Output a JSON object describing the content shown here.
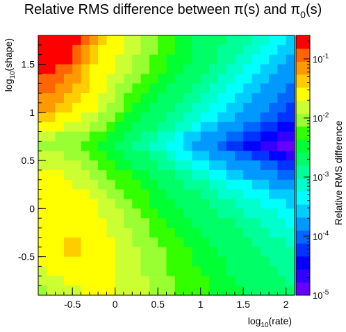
{
  "chart_data": {
    "type": "heatmap",
    "title": "Relative RMS difference between π(s) and π",
    "title_sub": "0",
    "title_tail": "(s)",
    "xlabel_main": "log",
    "xlabel_sub": "10",
    "xlabel_tail": "(rate)",
    "ylabel_main": "log",
    "ylabel_sub": "10",
    "ylabel_tail": "(shape)",
    "zlabel": "Relative RMS difference",
    "xlim": [
      -0.9,
      2.1
    ],
    "ylim": [
      -0.9,
      1.8
    ],
    "zlim": [
      1e-05,
      0.25
    ],
    "zscale": "log",
    "xticks": [
      -0.5,
      0,
      0.5,
      1,
      1.5,
      2
    ],
    "xtick_labels": [
      "-0.5",
      "0",
      "0.5",
      "1",
      "1.5",
      "2"
    ],
    "yticks": [
      -0.5,
      0,
      0.5,
      1,
      1.5
    ],
    "ytick_labels": [
      "-0.5",
      "0",
      "0.5",
      "1",
      "1.5"
    ],
    "zticks": [
      1e-05,
      0.0001,
      0.001,
      0.01,
      0.1
    ],
    "ztick_base": "10",
    "ztick_exponents": [
      "-5",
      "-4",
      "-3",
      "-2",
      "-1"
    ],
    "grid": false,
    "colorbar": "right",
    "nx": 30,
    "ny": 27,
    "values_log10": [
      [
        -0.8,
        -0.8,
        -0.8,
        -0.8,
        -0.8,
        -0.9,
        -1.2,
        -1.4,
        -1.6,
        -1.7,
        -1.8,
        -1.9,
        -2.0,
        -2.1,
        -2.2,
        -2.3,
        -2.4,
        -2.5,
        -2.6,
        -2.6,
        -2.7,
        -2.8,
        -2.9,
        -3.0,
        -3.0,
        -3.1,
        -3.2,
        -3.3,
        -3.4,
        -3.5
      ],
      [
        -0.8,
        -0.8,
        -0.8,
        -0.8,
        -0.9,
        -1.1,
        -1.3,
        -1.5,
        -1.6,
        -1.7,
        -1.8,
        -1.9,
        -2.0,
        -2.1,
        -2.2,
        -2.3,
        -2.4,
        -2.5,
        -2.6,
        -2.7,
        -2.8,
        -2.9,
        -3.0,
        -3.0,
        -3.1,
        -3.2,
        -3.3,
        -3.4,
        -3.5,
        -3.6
      ],
      [
        -0.8,
        -0.8,
        -0.8,
        -0.8,
        -1.0,
        -1.2,
        -1.4,
        -1.6,
        -1.7,
        -1.8,
        -1.9,
        -2.0,
        -2.1,
        -2.2,
        -2.3,
        -2.4,
        -2.4,
        -2.5,
        -2.6,
        -2.7,
        -2.8,
        -2.9,
        -3.0,
        -3.1,
        -3.2,
        -3.3,
        -3.4,
        -3.5,
        -3.6,
        -3.7
      ],
      [
        -0.8,
        -0.8,
        -0.9,
        -1.0,
        -1.1,
        -1.3,
        -1.5,
        -1.6,
        -1.7,
        -1.8,
        -1.9,
        -2.0,
        -2.1,
        -2.2,
        -2.3,
        -2.4,
        -2.5,
        -2.6,
        -2.7,
        -2.8,
        -2.9,
        -3.0,
        -3.1,
        -3.2,
        -3.3,
        -3.4,
        -3.5,
        -3.6,
        -3.7,
        -3.8
      ],
      [
        -0.9,
        -0.9,
        -1.0,
        -1.1,
        -1.2,
        -1.4,
        -1.5,
        -1.7,
        -1.8,
        -1.9,
        -2.0,
        -2.1,
        -2.2,
        -2.3,
        -2.4,
        -2.5,
        -2.6,
        -2.7,
        -2.8,
        -2.9,
        -3.0,
        -3.1,
        -3.2,
        -3.3,
        -3.4,
        -3.5,
        -3.6,
        -3.7,
        -3.8,
        -3.9
      ],
      [
        -1.0,
        -1.0,
        -1.1,
        -1.2,
        -1.3,
        -1.4,
        -1.6,
        -1.7,
        -1.9,
        -2.0,
        -2.1,
        -2.2,
        -2.3,
        -2.4,
        -2.5,
        -2.6,
        -2.7,
        -2.8,
        -2.9,
        -3.0,
        -3.1,
        -3.2,
        -3.3,
        -3.4,
        -3.5,
        -3.6,
        -3.7,
        -3.8,
        -3.9,
        -4.0
      ],
      [
        -1.1,
        -1.1,
        -1.2,
        -1.3,
        -1.4,
        -1.5,
        -1.6,
        -1.8,
        -1.9,
        -2.1,
        -2.2,
        -2.3,
        -2.4,
        -2.5,
        -2.6,
        -2.7,
        -2.8,
        -2.9,
        -3.0,
        -3.1,
        -3.2,
        -3.3,
        -3.4,
        -3.5,
        -3.6,
        -3.7,
        -3.8,
        -3.9,
        -4.0,
        -4.1
      ],
      [
        -1.2,
        -1.2,
        -1.3,
        -1.4,
        -1.5,
        -1.6,
        -1.7,
        -1.9,
        -2.0,
        -2.1,
        -2.3,
        -2.4,
        -2.5,
        -2.6,
        -2.7,
        -2.8,
        -2.9,
        -3.0,
        -3.1,
        -3.2,
        -3.3,
        -3.4,
        -3.5,
        -3.6,
        -3.7,
        -3.8,
        -3.9,
        -4.0,
        -4.1,
        -4.2
      ],
      [
        -1.3,
        -1.4,
        -1.5,
        -1.6,
        -1.7,
        -1.8,
        -1.9,
        -2.0,
        -2.1,
        -2.2,
        -2.4,
        -2.5,
        -2.6,
        -2.7,
        -2.8,
        -2.9,
        -3.0,
        -3.1,
        -3.2,
        -3.3,
        -3.4,
        -3.5,
        -3.6,
        -3.7,
        -3.8,
        -3.9,
        -4.0,
        -4.1,
        -4.2,
        -4.3
      ],
      [
        -1.6,
        -1.6,
        -1.7,
        -1.8,
        -1.8,
        -1.9,
        -2.0,
        -2.1,
        -2.2,
        -2.4,
        -2.5,
        -2.6,
        -2.7,
        -2.8,
        -2.9,
        -3.0,
        -3.1,
        -3.2,
        -3.4,
        -3.5,
        -3.6,
        -3.7,
        -3.8,
        -3.9,
        -4.0,
        -4.1,
        -4.2,
        -4.3,
        -4.4,
        -4.5
      ],
      [
        -1.9,
        -1.9,
        -2.0,
        -2.0,
        -2.1,
        -2.1,
        -2.2,
        -2.3,
        -2.4,
        -2.5,
        -2.6,
        -2.8,
        -2.9,
        -3.0,
        -3.1,
        -3.2,
        -3.3,
        -3.5,
        -3.6,
        -3.7,
        -3.8,
        -3.9,
        -4.0,
        -4.1,
        -4.2,
        -4.3,
        -4.4,
        -4.5,
        -4.6,
        -4.7
      ],
      [
        -2.0,
        -2.0,
        -2.1,
        -2.1,
        -2.1,
        -2.2,
        -2.3,
        -2.4,
        -2.5,
        -2.6,
        -2.7,
        -2.9,
        -3.0,
        -3.1,
        -3.2,
        -3.3,
        -3.4,
        -3.6,
        -3.7,
        -3.8,
        -3.9,
        -4.0,
        -4.2,
        -4.3,
        -4.4,
        -4.5,
        -4.6,
        -4.7,
        -4.8,
        -5.0
      ],
      [
        -1.9,
        -1.9,
        -1.9,
        -2.0,
        -2.0,
        -2.1,
        -2.2,
        -2.3,
        -2.4,
        -2.5,
        -2.6,
        -2.7,
        -2.8,
        -2.9,
        -3.0,
        -3.2,
        -3.3,
        -3.4,
        -3.5,
        -3.6,
        -3.7,
        -3.8,
        -3.9,
        -4.0,
        -4.1,
        -4.2,
        -4.3,
        -4.4,
        -4.5,
        -4.7
      ],
      [
        -1.8,
        -1.8,
        -1.8,
        -1.9,
        -1.9,
        -2.0,
        -2.1,
        -2.2,
        -2.3,
        -2.4,
        -2.5,
        -2.6,
        -2.7,
        -2.8,
        -2.9,
        -3.0,
        -3.1,
        -3.2,
        -3.3,
        -3.4,
        -3.5,
        -3.6,
        -3.7,
        -3.8,
        -3.8,
        -3.9,
        -4.0,
        -4.1,
        -4.2,
        -4.3
      ],
      [
        -1.7,
        -1.7,
        -1.7,
        -1.8,
        -1.8,
        -1.9,
        -2.0,
        -2.1,
        -2.2,
        -2.2,
        -2.3,
        -2.4,
        -2.5,
        -2.6,
        -2.7,
        -2.8,
        -2.9,
        -3.0,
        -3.1,
        -3.2,
        -3.3,
        -3.4,
        -3.5,
        -3.6,
        -3.7,
        -3.7,
        -3.8,
        -3.9,
        -4.0,
        -4.0
      ],
      [
        -1.7,
        -1.7,
        -1.7,
        -1.7,
        -1.8,
        -1.8,
        -1.9,
        -2.0,
        -2.1,
        -2.2,
        -2.2,
        -2.3,
        -2.4,
        -2.5,
        -2.6,
        -2.7,
        -2.8,
        -2.9,
        -2.9,
        -3.0,
        -3.1,
        -3.2,
        -3.3,
        -3.4,
        -3.4,
        -3.5,
        -3.6,
        -3.7,
        -3.7,
        -3.8
      ],
      [
        -1.6,
        -1.6,
        -1.6,
        -1.6,
        -1.7,
        -1.7,
        -1.8,
        -1.9,
        -2.0,
        -2.1,
        -2.2,
        -2.3,
        -2.3,
        -2.4,
        -2.5,
        -2.6,
        -2.7,
        -2.8,
        -2.8,
        -2.9,
        -3.0,
        -3.1,
        -3.2,
        -3.2,
        -3.3,
        -3.4,
        -3.4,
        -3.5,
        -3.6,
        -3.6
      ],
      [
        -1.6,
        -1.6,
        -1.6,
        -1.6,
        -1.6,
        -1.7,
        -1.7,
        -1.8,
        -1.9,
        -2.0,
        -2.1,
        -2.2,
        -2.3,
        -2.4,
        -2.4,
        -2.5,
        -2.6,
        -2.7,
        -2.7,
        -2.8,
        -2.9,
        -3.0,
        -3.0,
        -3.1,
        -3.2,
        -3.2,
        -3.3,
        -3.4,
        -3.4,
        -3.5
      ],
      [
        -1.6,
        -1.6,
        -1.6,
        -1.6,
        -1.6,
        -1.6,
        -1.7,
        -1.8,
        -1.8,
        -1.9,
        -2.0,
        -2.1,
        -2.2,
        -2.3,
        -2.4,
        -2.4,
        -2.5,
        -2.6,
        -2.7,
        -2.7,
        -2.8,
        -2.9,
        -2.9,
        -3.0,
        -3.1,
        -3.1,
        -3.2,
        -3.2,
        -3.3,
        -3.4
      ],
      [
        -1.6,
        -1.6,
        -1.6,
        -1.6,
        -1.6,
        -1.6,
        -1.7,
        -1.7,
        -1.8,
        -1.9,
        -2.0,
        -2.0,
        -2.1,
        -2.2,
        -2.3,
        -2.4,
        -2.4,
        -2.5,
        -2.6,
        -2.6,
        -2.7,
        -2.8,
        -2.8,
        -2.9,
        -3.0,
        -3.0,
        -3.1,
        -3.1,
        -3.2,
        -3.3
      ],
      [
        -1.7,
        -1.6,
        -1.6,
        -1.6,
        -1.6,
        -1.6,
        -1.6,
        -1.7,
        -1.8,
        -1.8,
        -1.9,
        -2.0,
        -2.1,
        -2.2,
        -2.2,
        -2.3,
        -2.4,
        -2.4,
        -2.5,
        -2.6,
        -2.6,
        -2.7,
        -2.8,
        -2.8,
        -2.9,
        -2.9,
        -3.0,
        -3.1,
        -3.1,
        -3.2
      ],
      [
        -1.7,
        -1.7,
        -1.6,
        -1.3,
        -1.3,
        -1.6,
        -1.6,
        -1.7,
        -1.7,
        -1.8,
        -1.9,
        -2.0,
        -2.0,
        -2.1,
        -2.2,
        -2.3,
        -2.3,
        -2.4,
        -2.4,
        -2.5,
        -2.6,
        -2.6,
        -2.7,
        -2.7,
        -2.8,
        -2.9,
        -2.9,
        -3.0,
        -3.0,
        -3.1
      ],
      [
        -1.7,
        -1.7,
        -1.6,
        -1.3,
        -1.3,
        -1.6,
        -1.6,
        -1.7,
        -1.7,
        -1.8,
        -1.9,
        -1.9,
        -2.0,
        -2.1,
        -2.1,
        -2.2,
        -2.3,
        -2.3,
        -2.4,
        -2.5,
        -2.5,
        -2.6,
        -2.6,
        -2.7,
        -2.8,
        -2.8,
        -2.9,
        -2.9,
        -3.0,
        -3.0
      ],
      [
        -1.7,
        -1.7,
        -1.7,
        -1.7,
        -1.6,
        -1.6,
        -1.6,
        -1.7,
        -1.7,
        -1.8,
        -1.8,
        -1.9,
        -2.0,
        -2.1,
        -2.1,
        -2.2,
        -2.2,
        -2.3,
        -2.4,
        -2.4,
        -2.5,
        -2.5,
        -2.6,
        -2.7,
        -2.7,
        -2.8,
        -2.8,
        -2.9,
        -2.9,
        -3.0
      ],
      [
        -1.8,
        -1.7,
        -1.7,
        -1.7,
        -1.7,
        -1.6,
        -1.6,
        -1.7,
        -1.7,
        -1.8,
        -1.8,
        -1.9,
        -2.0,
        -2.0,
        -2.1,
        -2.2,
        -2.2,
        -2.3,
        -2.3,
        -2.4,
        -2.4,
        -2.5,
        -2.6,
        -2.6,
        -2.7,
        -2.7,
        -2.8,
        -2.8,
        -2.9,
        -2.9
      ],
      [
        -1.9,
        -1.8,
        -1.8,
        -1.7,
        -1.7,
        -1.7,
        -1.7,
        -1.7,
        -1.7,
        -1.8,
        -1.8,
        -1.9,
        -1.9,
        -2.0,
        -2.1,
        -2.1,
        -2.2,
        -2.2,
        -2.3,
        -2.3,
        -2.4,
        -2.5,
        -2.5,
        -2.6,
        -2.6,
        -2.7,
        -2.7,
        -2.8,
        -2.8,
        -2.9
      ],
      [
        -2.0,
        -1.9,
        -1.8,
        -1.8,
        -1.8,
        -1.7,
        -1.7,
        -1.7,
        -1.7,
        -1.8,
        -1.8,
        -1.9,
        -1.9,
        -2.0,
        -2.0,
        -2.1,
        -2.2,
        -2.2,
        -2.3,
        -2.3,
        -2.4,
        -2.4,
        -2.5,
        -2.5,
        -2.6,
        -2.6,
        -2.7,
        -2.7,
        -2.8,
        -2.8
      ]
    ]
  }
}
